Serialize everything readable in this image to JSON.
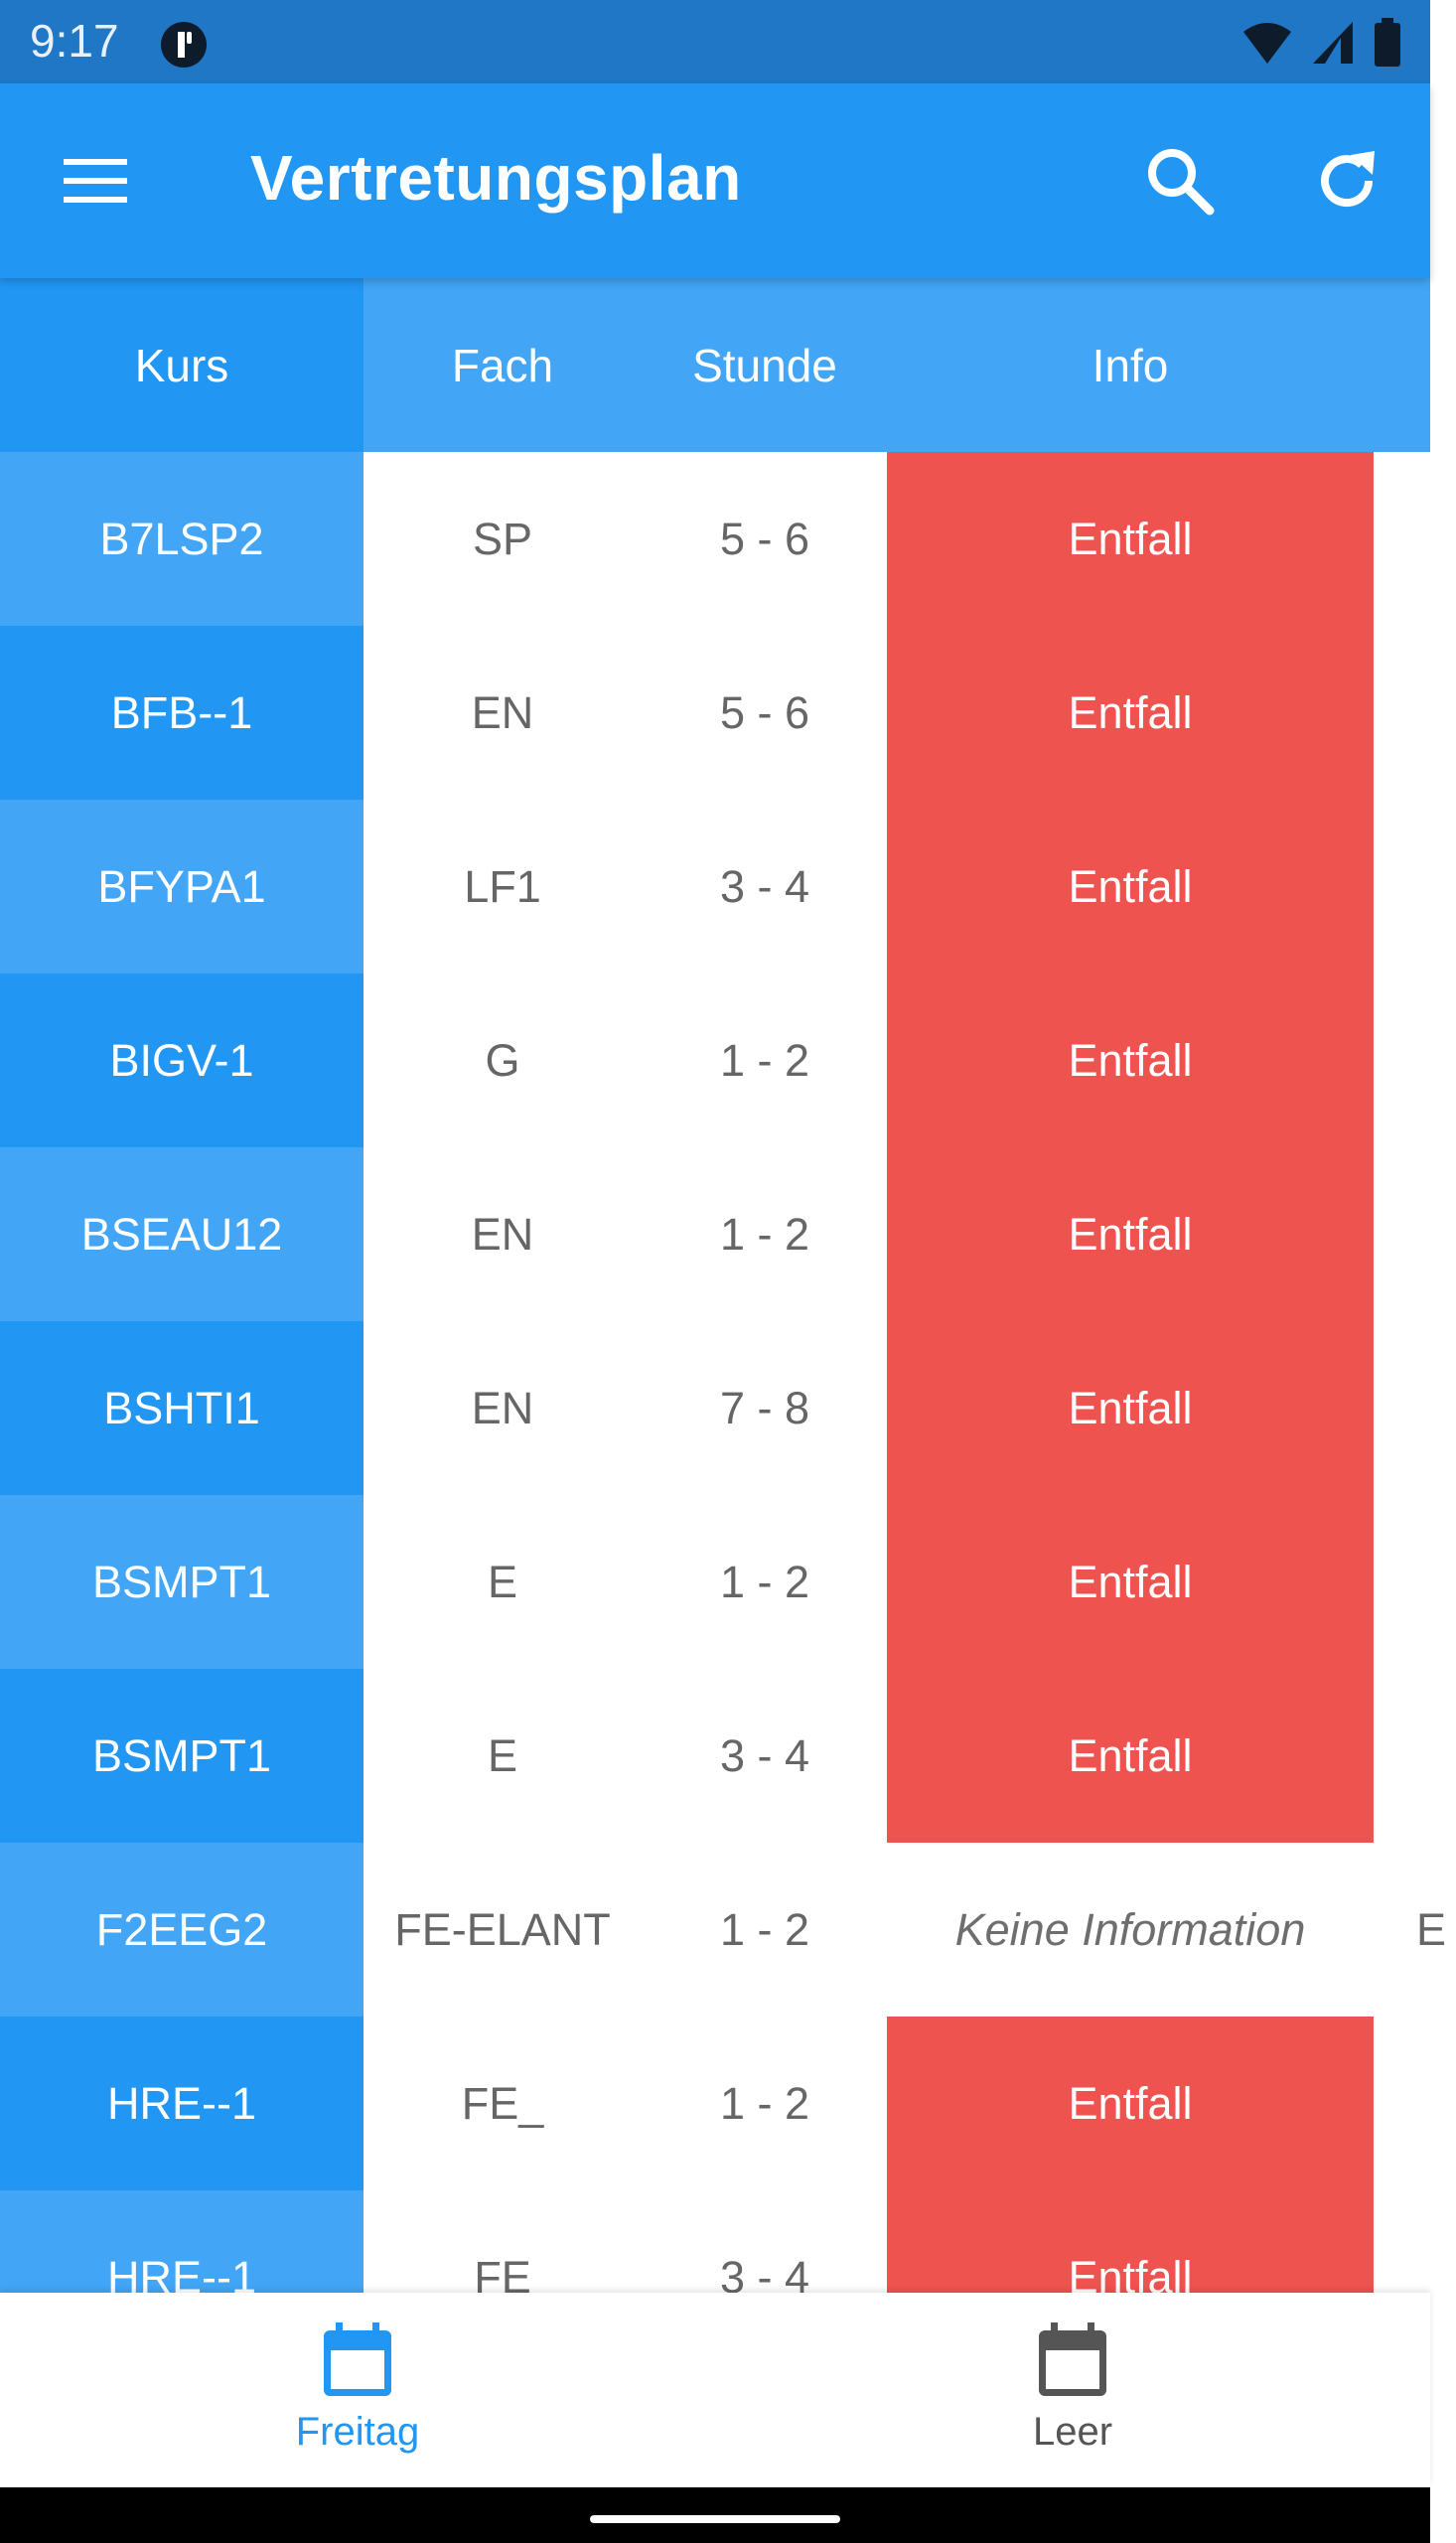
{
  "status_bar": {
    "time": "9:17"
  },
  "app_bar": {
    "title": "Vertretungsplan"
  },
  "table": {
    "headers": {
      "kurs": "Kurs",
      "fach": "Fach",
      "stunde": "Stunde",
      "info": "Info"
    },
    "rows": [
      {
        "kurs": "B7LSP2",
        "fach": "SP",
        "stunde": "5 - 6",
        "info": "Entfall",
        "info_type": "entfall"
      },
      {
        "kurs": "BFB--1",
        "fach": "EN",
        "stunde": "5 - 6",
        "info": "Entfall",
        "info_type": "entfall"
      },
      {
        "kurs": "BFYPA1",
        "fach": "LF1",
        "stunde": "3 - 4",
        "info": "Entfall",
        "info_type": "entfall"
      },
      {
        "kurs": "BIGV-1",
        "fach": "G",
        "stunde": "1 - 2",
        "info": "Entfall",
        "info_type": "entfall"
      },
      {
        "kurs": "BSEAU12",
        "fach": "EN",
        "stunde": "1 - 2",
        "info": "Entfall",
        "info_type": "entfall"
      },
      {
        "kurs": "BSHTI1",
        "fach": "EN",
        "stunde": "7 - 8",
        "info": "Entfall",
        "info_type": "entfall"
      },
      {
        "kurs": "BSMPT1",
        "fach": "E",
        "stunde": "1 - 2",
        "info": "Entfall",
        "info_type": "entfall"
      },
      {
        "kurs": "BSMPT1",
        "fach": "E",
        "stunde": "3 - 4",
        "info": "Entfall",
        "info_type": "entfall"
      },
      {
        "kurs": "F2EEG2",
        "fach": "FE-ELANT",
        "stunde": "1 - 2",
        "info": "Keine Information",
        "info_type": "none",
        "overflow": "E"
      },
      {
        "kurs": "HRE--1",
        "fach": "FE_",
        "stunde": "1 - 2",
        "info": "Entfall",
        "info_type": "entfall"
      },
      {
        "kurs": "HRE--1",
        "fach": "FE",
        "stunde": "3 - 4",
        "info": "Entfall",
        "info_type": "entfall"
      }
    ]
  },
  "bottom_nav": [
    {
      "label": "Freitag",
      "active": true
    },
    {
      "label": "Leer",
      "active": false
    }
  ],
  "colors": {
    "primary": "#2196f3",
    "primary_light": "#42a5f5",
    "status_bar": "#1f77c6",
    "entfall": "#ef5350",
    "active_nav": "#2196f3",
    "inactive_nav": "#555555"
  },
  "icons": {
    "menu": "menu-icon",
    "search": "search-icon",
    "refresh": "refresh-icon",
    "calendar": "calendar-icon",
    "wifi": "wifi-icon",
    "signal": "signal-icon",
    "battery": "battery-icon"
  }
}
